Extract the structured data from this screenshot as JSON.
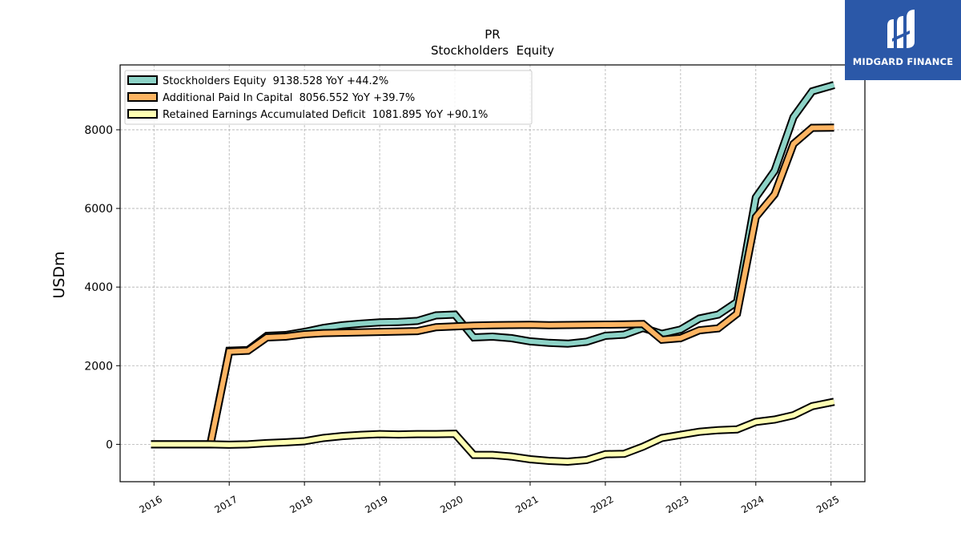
{
  "chart_data": {
    "type": "line",
    "title": "PR",
    "subtitle": "Stockholders  Equity",
    "ylabel": "USDm",
    "xlabel": "",
    "xlim": [
      2015.55,
      2025.45
    ],
    "ylim": [
      -950,
      9650
    ],
    "yticks": [
      0,
      2000,
      4000,
      6000,
      8000
    ],
    "ytick_labels": [
      "0",
      "2000",
      "4000",
      "6000",
      "8000"
    ],
    "xticks": [
      2016,
      2017,
      2018,
      2019,
      2020,
      2021,
      2022,
      2023,
      2024,
      2025
    ],
    "xtick_labels": [
      "2016",
      "2017",
      "2018",
      "2019",
      "2020",
      "2021",
      "2022",
      "2023",
      "2024",
      "2025"
    ],
    "grid": true,
    "legend_position": "top-left",
    "x": [
      2015.96,
      2016.75,
      2017.0,
      2017.25,
      2017.5,
      2017.75,
      2018.0,
      2018.25,
      2018.5,
      2018.75,
      2019.0,
      2019.25,
      2019.5,
      2019.75,
      2020.0,
      2020.25,
      2020.5,
      2020.75,
      2021.0,
      2021.25,
      2021.5,
      2021.75,
      2022.0,
      2022.25,
      2022.5,
      2022.75,
      2023.0,
      2023.25,
      2023.5,
      2023.75,
      2024.0,
      2024.25,
      2024.5,
      2024.75,
      2025.04
    ],
    "series": [
      {
        "name": "Stockholders Equity",
        "legend_label": "Stockholders Equity  9138.528 YoY +44.2%",
        "color": "#8dd3c7",
        "values": [
          0,
          0,
          2380,
          2400,
          2760,
          2780,
          2860,
          2960,
          3030,
          3070,
          3100,
          3110,
          3140,
          3280,
          3300,
          2720,
          2740,
          2700,
          2620,
          2580,
          2560,
          2610,
          2760,
          2790,
          2960,
          2810,
          2920,
          3200,
          3300,
          3620,
          6280,
          6960,
          8320,
          8980,
          9138.528
        ]
      },
      {
        "name": "Additional Paid In Capital",
        "legend_label": "Additional Paid In Capital  8056.552 YoY +39.7%",
        "color": "#fdb462",
        "values": [
          0,
          0,
          2360,
          2380,
          2720,
          2740,
          2800,
          2830,
          2840,
          2850,
          2860,
          2870,
          2880,
          2980,
          3000,
          3020,
          3030,
          3035,
          3040,
          3030,
          3035,
          3040,
          3045,
          3050,
          3060,
          2660,
          2700,
          2900,
          2950,
          3320,
          5780,
          6360,
          7640,
          8050,
          8056.552
        ]
      },
      {
        "name": "Retained Earnings Accumulated Deficit",
        "legend_label": "Retained Earnings Accumulated Deficit  1081.895 YoY +90.1%",
        "color": "#ffffb3",
        "values": [
          0,
          0,
          -10,
          0,
          30,
          50,
          80,
          160,
          210,
          240,
          260,
          250,
          260,
          260,
          270,
          -270,
          -270,
          -310,
          -380,
          -420,
          -440,
          -400,
          -250,
          -240,
          -60,
          160,
          240,
          320,
          360,
          380,
          570,
          630,
          740,
          970,
          1081.895
        ]
      }
    ]
  },
  "logo": {
    "text": "MIDGARD FINANCE",
    "background": "#2b58a8",
    "icon": "midgard-logo-icon"
  }
}
